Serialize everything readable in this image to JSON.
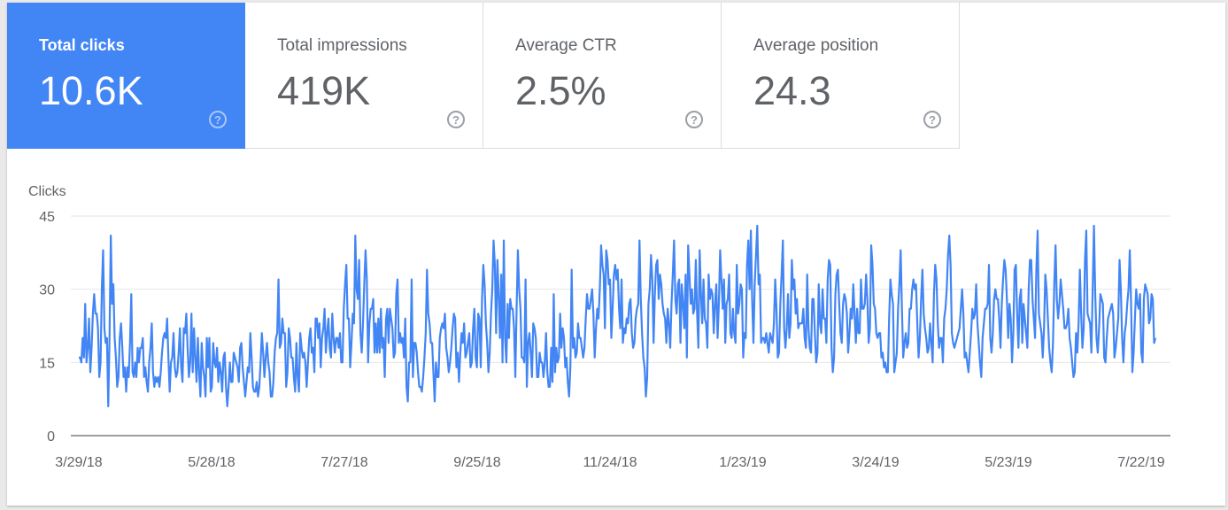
{
  "metrics": [
    {
      "label": "Total clicks",
      "value": "10.6K",
      "active": true
    },
    {
      "label": "Total impressions",
      "value": "419K",
      "active": false
    },
    {
      "label": "Average CTR",
      "value": "2.5%",
      "active": false
    },
    {
      "label": "Average position",
      "value": "24.3",
      "active": false
    }
  ],
  "help_icon_glyph": "?",
  "colors": {
    "accent": "#4285f4",
    "line": "#4285f4",
    "grid": "#e6e6e6",
    "axis": "#5f6368"
  },
  "chart_data": {
    "type": "line",
    "ylabel": "Clicks",
    "xlabel": "",
    "ylim": [
      0,
      45
    ],
    "yticks": [
      0,
      15,
      30,
      45
    ],
    "xticks": [
      "3/29/18",
      "5/28/18",
      "7/27/18",
      "9/25/18",
      "11/24/18",
      "1/23/19",
      "3/24/19",
      "5/23/19",
      "7/22/19"
    ],
    "x_start": "3/29/18",
    "x_end": "7/22/19",
    "grid": true,
    "series": [
      {
        "values": [
          16,
          16,
          15,
          20,
          16,
          27,
          15,
          18,
          24,
          13,
          18,
          25,
          29,
          25,
          25,
          22,
          12,
          15,
          30,
          38,
          22,
          19,
          20,
          6,
          20,
          41,
          27,
          31,
          20,
          16,
          10,
          12,
          20,
          23,
          18,
          12,
          14,
          9,
          14,
          12,
          19,
          29,
          13,
          12,
          15,
          12,
          18,
          15,
          18,
          18,
          20,
          12,
          14,
          11,
          9,
          15,
          18,
          23,
          13,
          10,
          12,
          11,
          12,
          10,
          13,
          17,
          20,
          21,
          20,
          24,
          16,
          9,
          15,
          16,
          21,
          14,
          12,
          13,
          17,
          22,
          14,
          11,
          22,
          21,
          25,
          18,
          12,
          15,
          25,
          13,
          22,
          16,
          11,
          20,
          13,
          8,
          19,
          14,
          12,
          8,
          20,
          14,
          20,
          9,
          10,
          19,
          15,
          14,
          18,
          11,
          15,
          13,
          9,
          16,
          17,
          10,
          6,
          10,
          15,
          11,
          11,
          17,
          16,
          15,
          14,
          11,
          18,
          19,
          14,
          11,
          8,
          11,
          14,
          13,
          21,
          16,
          10,
          9,
          9,
          11,
          8,
          10,
          15,
          21,
          17,
          12,
          16,
          19,
          15,
          13,
          8,
          8,
          11,
          17,
          20,
          21,
          32,
          18,
          19,
          24,
          21,
          21,
          10,
          13,
          22,
          20,
          16,
          16,
          12,
          9,
          19,
          12,
          9,
          21,
          18,
          16,
          17,
          15,
          10,
          15,
          20,
          22,
          17,
          18,
          13,
          24,
          24,
          20,
          23,
          14,
          20,
          22,
          26,
          17,
          21,
          24,
          18,
          16,
          25,
          20,
          17,
          20,
          20,
          18,
          21,
          15,
          15,
          26,
          31,
          35,
          24,
          24,
          14,
          19,
          25,
          23,
          41,
          30,
          28,
          36,
          21,
          17,
          23,
          31,
          38,
          32,
          15,
          23,
          26,
          26,
          28,
          17,
          23,
          17,
          24,
          17,
          26,
          18,
          20,
          12,
          24,
          26,
          19,
          26,
          24,
          22,
          16,
          17,
          29,
          32,
          19,
          21,
          19,
          20,
          16,
          24,
          10,
          7,
          15,
          15,
          32,
          12,
          19,
          19,
          17,
          13,
          10,
          10,
          9,
          12,
          16,
          21,
          34,
          25,
          23,
          19,
          19,
          13,
          7,
          15,
          12,
          12,
          20,
          22,
          23,
          22,
          25,
          18,
          16,
          13,
          15,
          18,
          22,
          25,
          24,
          14,
          17,
          11,
          17,
          21,
          19,
          23,
          16,
          17,
          19,
          21,
          14,
          15,
          22,
          26,
          16,
          14,
          25,
          24,
          14,
          28,
          35,
          31,
          23,
          19,
          13,
          17,
          25,
          30,
          40,
          35,
          21,
          36,
          29,
          20,
          33,
          15,
          40,
          20,
          15,
          27,
          20,
          28,
          26,
          26,
          22,
          12,
          26,
          38,
          30,
          26,
          16,
          16,
          15,
          32,
          10,
          19,
          21,
          17,
          12,
          23,
          22,
          20,
          12,
          12,
          17,
          15,
          15,
          12,
          15,
          21,
          13,
          10,
          10,
          18,
          11,
          29,
          13,
          18,
          15,
          16,
          25,
          18,
          22,
          20,
          14,
          16,
          11,
          8,
          14,
          34,
          18,
          20,
          16,
          17,
          23,
          20,
          20,
          18,
          16,
          18,
          24,
          29,
          26,
          26,
          28,
          30,
          25,
          16,
          22,
          26,
          24,
          30,
          39,
          35,
          33,
          22,
          38,
          36,
          31,
          32,
          20,
          26,
          33,
          35,
          32,
          34,
          26,
          22,
          32,
          19,
          22,
          21,
          24,
          23,
          27,
          28,
          21,
          18,
          19,
          24,
          26,
          27,
          40,
          28,
          21,
          16,
          14,
          8,
          12,
          27,
          30,
          37,
          32,
          19,
          29,
          35,
          36,
          28,
          33,
          31,
          27,
          25,
          24,
          19,
          26,
          23,
          18,
          27,
          33,
          40,
          28,
          25,
          31,
          32,
          19,
          31,
          27,
          22,
          33,
          16,
          39,
          33,
          27,
          30,
          25,
          26,
          36,
          25,
          18,
          38,
          29,
          23,
          32,
          24,
          23,
          18,
          33,
          28,
          30,
          29,
          21,
          27,
          31,
          20,
          27,
          38,
          32,
          26,
          32,
          19,
          27,
          28,
          33,
          21,
          20,
          26,
          21,
          19,
          35,
          25,
          27,
          31,
          30,
          16,
          21,
          20,
          35,
          40,
          30,
          42,
          28,
          19,
          31,
          37,
          43,
          31,
          33,
          19,
          20,
          20,
          19,
          21,
          19,
          17,
          21,
          20,
          19,
          23,
          32,
          26,
          16,
          17,
          27,
          33,
          40,
          22,
          18,
          22,
          29,
          20,
          23,
          36,
          30,
          32,
          25,
          28,
          22,
          23,
          23,
          23,
          26,
          20,
          18,
          33,
          22,
          18,
          17,
          28,
          28,
          21,
          15,
          17,
          31,
          23,
          21,
          30,
          24,
          24,
          19,
          32,
          36,
          35,
          18,
          13,
          16,
          29,
          33,
          34,
          27,
          21,
          19,
          27,
          29,
          28,
          25,
          17,
          21,
          26,
          24,
          31,
          25,
          19,
          26,
          21,
          21,
          32,
          26,
          26,
          27,
          33,
          28,
          19,
          22,
          39,
          35,
          27,
          26,
          21,
          20,
          21,
          21,
          16,
          17,
          14,
          15,
          13,
          13,
          24,
          32,
          29,
          27,
          13,
          15,
          17,
          26,
          31,
          38,
          26,
          16,
          19,
          21,
          18,
          19,
          26,
          26,
          30,
          32,
          30,
          31,
          23,
          16,
          20,
          28,
          34,
          25,
          22,
          20,
          17,
          18,
          23,
          19,
          15,
          29,
          35,
          32,
          23,
          18,
          20,
          20,
          15,
          24,
          26,
          30,
          37,
          41,
          35,
          21,
          19,
          18,
          19,
          20,
          21,
          22,
          26,
          30,
          25,
          16,
          17,
          15,
          13,
          17,
          21,
          26,
          24,
          25,
          31,
          23,
          19,
          15,
          12,
          20,
          23,
          26,
          26,
          27,
          35,
          20,
          17,
          21,
          28,
          30,
          28,
          28,
          24,
          18,
          27,
          32,
          36,
          34,
          28,
          20,
          27,
          24,
          15,
          21,
          34,
          35,
          25,
          18,
          28,
          30,
          19,
          27,
          24,
          21,
          18,
          30,
          36,
          36,
          28,
          24,
          20,
          34,
          42,
          25,
          23,
          21,
          16,
          22,
          33,
          30,
          24,
          18,
          15,
          13,
          19,
          31,
          39,
          28,
          24,
          27,
          32,
          29,
          26,
          22,
          22,
          23,
          26,
          20,
          18,
          15,
          12,
          13,
          21,
          17,
          23,
          34,
          25,
          18,
          22,
          36,
          42,
          25,
          24,
          23,
          17,
          30,
          43,
          29,
          20,
          17,
          22,
          29,
          28,
          27,
          16,
          15,
          20,
          24,
          25,
          26,
          27,
          25,
          16,
          18,
          21,
          24,
          36,
          30,
          20,
          15,
          21,
          23,
          27,
          30,
          38,
          27,
          13,
          17,
          24,
          30,
          27,
          26,
          29,
          17,
          15,
          28,
          31,
          30,
          29,
          23,
          24,
          29,
          28,
          19,
          20
        ]
      }
    ]
  }
}
